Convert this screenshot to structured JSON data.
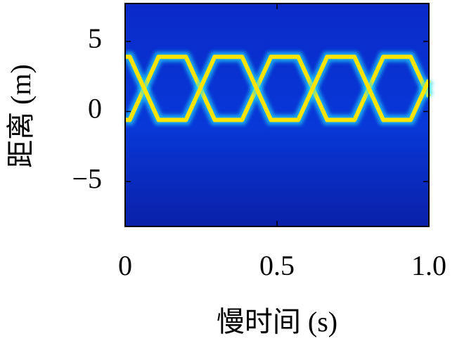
{
  "chart_data": {
    "type": "line",
    "xlabel": "慢时间 (s)",
    "ylabel": "距离 (m)",
    "x": [
      0,
      0.015,
      0.11,
      0.2,
      0.295,
      0.385,
      0.48,
      0.57,
      0.665,
      0.755,
      0.85,
      0.94,
      1.0
    ],
    "series": [
      {
        "color": "#ffe400",
        "values": [
          -0.6,
          -0.6,
          3.9,
          3.9,
          -0.6,
          -0.6,
          3.9,
          3.9,
          -0.6,
          -0.6,
          3.9,
          3.9,
          1.06
        ]
      },
      {
        "color": "#ffe400",
        "values": [
          3.9,
          3.9,
          -0.6,
          -0.6,
          3.9,
          3.9,
          -0.6,
          -0.6,
          3.9,
          3.9,
          -0.6,
          -0.6,
          2.24
        ]
      }
    ],
    "xlim": [
      0,
      1
    ],
    "ylim": [
      -8.2,
      7.7
    ],
    "xticks": [
      0,
      0.5,
      {
        "value": 1,
        "label": "1.0"
      }
    ],
    "yticks": [
      {
        "value": -5,
        "label": "−5"
      },
      0,
      5
    ]
  }
}
